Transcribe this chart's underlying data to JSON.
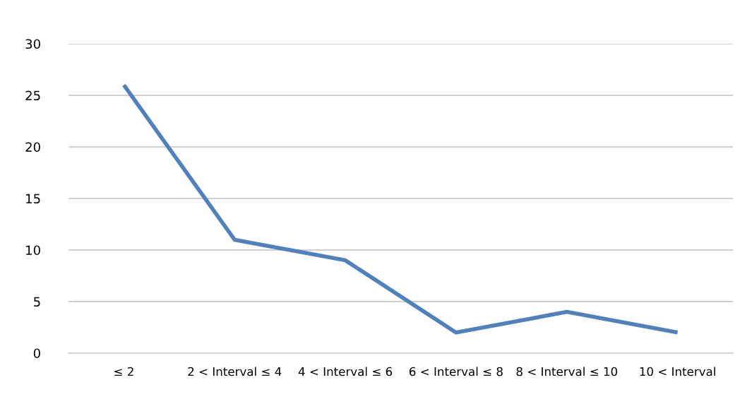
{
  "chart_data": {
    "type": "line",
    "categories": [
      "≤ 2",
      "2 < Interval ≤ 4",
      "4 < Interval ≤ 6",
      "6 < Interval ≤ 8",
      "8 < Interval ≤ 10",
      "10 < Interval"
    ],
    "series": [
      {
        "color": "#4f81bd",
        "values": [
          26,
          11,
          9,
          2,
          4,
          2
        ]
      }
    ],
    "ylim": [
      0,
      30
    ],
    "yticks": [
      0,
      5,
      10,
      15,
      20,
      25,
      30
    ],
    "grid": "y",
    "marker": "none",
    "line_style": "solid"
  }
}
